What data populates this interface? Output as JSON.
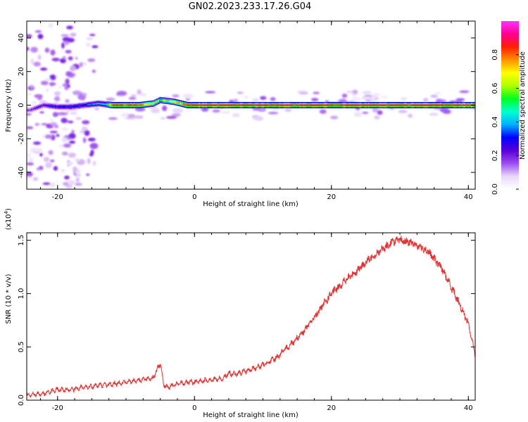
{
  "title": "GN02.2023.233.17.26.G04",
  "chart_data": [
    {
      "type": "heatmap",
      "xlabel": "Height of straight line (km)",
      "ylabel": "Frequency (Hz)",
      "xlim": [
        -24.5,
        41
      ],
      "ylim": [
        -50,
        50
      ],
      "xticks": [
        -20,
        0,
        20,
        40
      ],
      "yticks": [
        -40,
        -20,
        0,
        20,
        40
      ],
      "colorbar": {
        "label": "Normalized spectral amplitude",
        "range": [
          0,
          1
        ],
        "ticks": [
          0.0,
          0.2,
          0.4,
          0.6,
          0.8
        ],
        "colors": [
          "#ffffff",
          "#e8d8f8",
          "#9c4cf0",
          "#5a00d8",
          "#0000ff",
          "#00b0ff",
          "#00ffd0",
          "#00ff20",
          "#b0ff00",
          "#ffff00",
          "#ff9000",
          "#ff2000",
          "#ff0090",
          "#ff30ff"
        ]
      },
      "ridge": {
        "points": [
          [
            -24,
            -3
          ],
          [
            -22,
            0
          ],
          [
            -20,
            -1
          ],
          [
            -18,
            -1
          ],
          [
            -16,
            0
          ],
          [
            -14,
            1
          ],
          [
            -12,
            0
          ],
          [
            -8,
            0
          ],
          [
            -6,
            1
          ],
          [
            -5,
            3
          ],
          [
            -3,
            2
          ],
          [
            -1,
            0
          ],
          [
            40,
            0
          ]
        ],
        "amplitude": [
          [
            -24,
            0.2
          ],
          [
            -20,
            0.3
          ],
          [
            -16,
            0.35
          ],
          [
            -13,
            0.45
          ],
          [
            -12,
            0.9
          ],
          [
            -8,
            0.9
          ],
          [
            -5,
            0.6
          ],
          [
            -3,
            0.75
          ],
          [
            0,
            0.95
          ],
          [
            41,
            0.95
          ]
        ]
      }
    },
    {
      "type": "line",
      "xlabel": "Height of straight line (km)",
      "ylabel": "SNR (10 * v/v)",
      "multiplier": "(x10",
      "multiplier_exp": "4",
      "multiplier_close": ")",
      "xlim": [
        -24.5,
        41
      ],
      "ylim": [
        0,
        1.57
      ],
      "xticks": [
        -20,
        0,
        20,
        40
      ],
      "yticks": [
        0.0,
        0.5,
        1.0,
        1.5
      ],
      "ytick_labels": [
        "0.0",
        "0.5",
        "1.0",
        "1.5"
      ],
      "color": "#e83030",
      "x": [
        -24.5,
        -22,
        -20,
        -18,
        -16,
        -14,
        -12,
        -10,
        -8,
        -6,
        -5,
        -4.5,
        -4,
        -3,
        -2,
        0,
        2,
        4,
        5,
        6,
        7,
        8,
        10,
        12,
        14,
        16,
        18,
        20,
        22,
        24,
        26,
        28,
        29,
        30,
        32,
        34,
        36,
        38,
        40,
        41
      ],
      "y": [
        0.05,
        0.06,
        0.1,
        0.1,
        0.12,
        0.14,
        0.15,
        0.17,
        0.19,
        0.21,
        0.35,
        0.15,
        0.12,
        0.14,
        0.16,
        0.17,
        0.19,
        0.2,
        0.25,
        0.24,
        0.27,
        0.28,
        0.33,
        0.4,
        0.52,
        0.65,
        0.82,
        1.0,
        1.12,
        1.23,
        1.35,
        1.44,
        1.49,
        1.5,
        1.47,
        1.4,
        1.25,
        1.0,
        0.72,
        0.42
      ]
    }
  ]
}
